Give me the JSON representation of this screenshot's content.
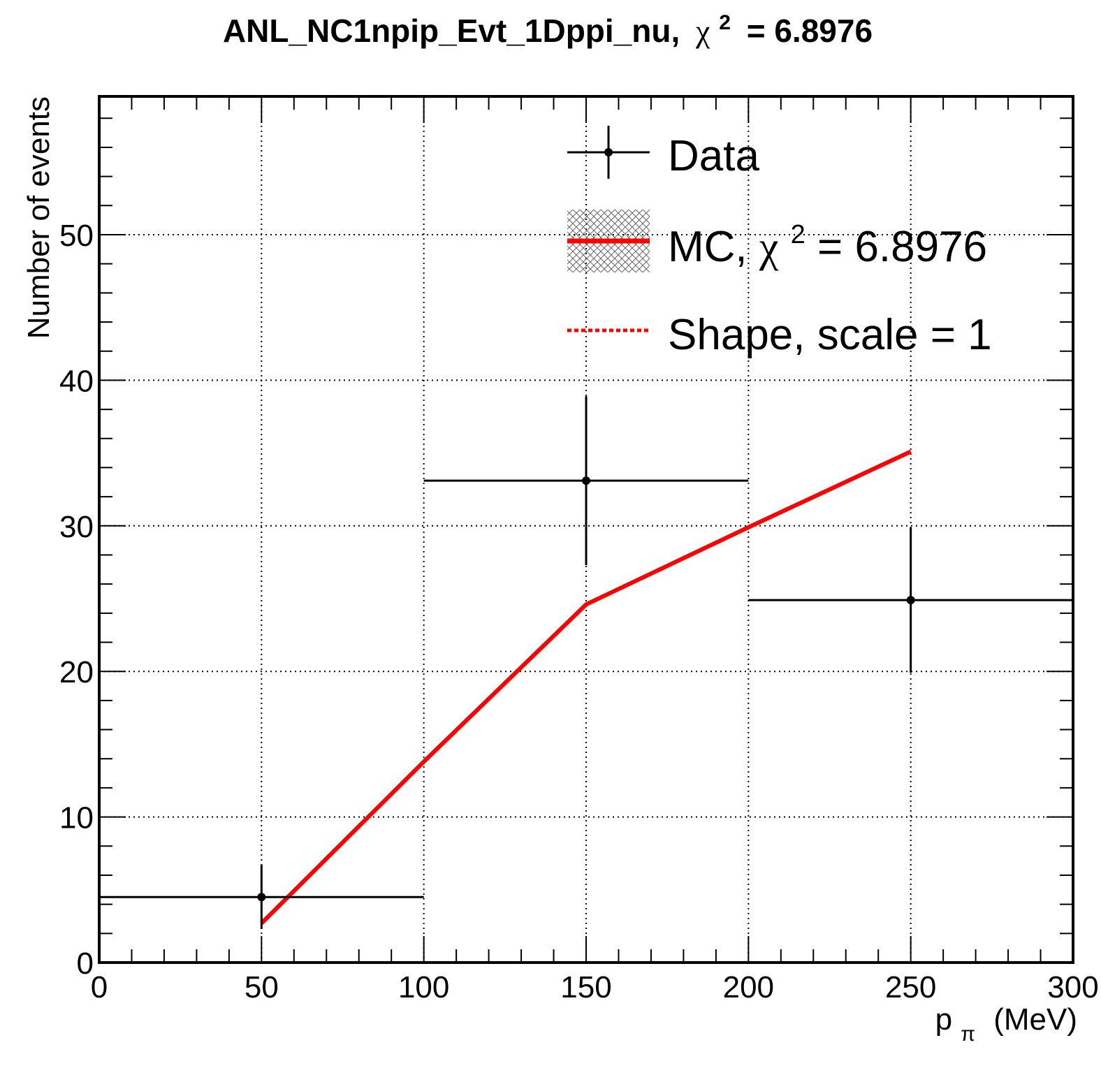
{
  "chart_data": {
    "type": "scatter",
    "title": {
      "main": "ANL_NC1npip_Evt_1Dppi_nu,",
      "chi_symbol": "χ",
      "chi_exp": "2",
      "chi_value": "= 6.8976"
    },
    "xlabel": {
      "main": "p",
      "sub": "π",
      "rest": "(MeV)"
    },
    "ylabel": "Number of events",
    "xlim": [
      0,
      300
    ],
    "ylim": [
      0,
      59.5
    ],
    "x_ticks": [
      0,
      50,
      100,
      150,
      200,
      250,
      300
    ],
    "x_tick_labels": [
      "0",
      "50",
      "100",
      "150",
      "200",
      "250",
      "300"
    ],
    "y_ticks": [
      0,
      10,
      20,
      30,
      40,
      50
    ],
    "y_tick_labels": [
      "0",
      "10",
      "20",
      "30",
      "40",
      "50"
    ],
    "x_minor_step": 10,
    "y_minor_step": 2,
    "grid": true,
    "legend_position": "top-right",
    "series": [
      {
        "name": "Data",
        "style": "points-with-errors",
        "color": "#000000",
        "points": [
          {
            "x": 50,
            "y": 4.5,
            "xlow": 0,
            "xhigh": 100,
            "ylow": 2.3,
            "yhigh": 6.7
          },
          {
            "x": 150,
            "y": 33.1,
            "xlow": 100,
            "xhigh": 200,
            "ylow": 27.3,
            "yhigh": 38.9
          },
          {
            "x": 250,
            "y": 24.9,
            "xlow": 200,
            "xhigh": 300,
            "ylow": 19.9,
            "yhigh": 29.9
          }
        ]
      },
      {
        "name": "MC",
        "style": "line",
        "color": "#ff0000",
        "x": [
          50,
          100,
          150,
          200,
          250
        ],
        "y": [
          2.7,
          13.8,
          24.6,
          29.9,
          35.1
        ]
      },
      {
        "name": "Shape",
        "style": "dashed-line",
        "color": "#ff0000",
        "x": [
          50,
          100,
          150,
          200,
          250
        ],
        "y": [
          2.7,
          13.8,
          24.6,
          29.9,
          35.1
        ]
      }
    ],
    "legend": {
      "data_label": "Data",
      "mc_label_prefix": "MC, ",
      "mc_chi_symbol": "χ",
      "mc_chi_exp": "2",
      "mc_chi_value": " = 6.8976",
      "shape_label": "Shape, scale = 1"
    }
  }
}
